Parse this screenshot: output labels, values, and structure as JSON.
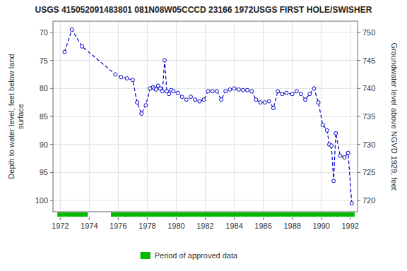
{
  "chart_data": {
    "type": "line",
    "title": "USGS 415052091483801 081N08W05CCCD 23166 1972USGS FIRST HOLE/SWISHER",
    "y_label": "Depth to water level, feet below land\nsurface",
    "y2_label": "Groundwater level above NGVD 1929, feet",
    "x": [
      1972.3,
      1972.8,
      1973.5,
      1975.8,
      1976.2,
      1976.6,
      1977.0,
      1977.3,
      1977.6,
      1977.9,
      1978.2,
      1978.4,
      1978.5,
      1978.6,
      1978.75,
      1978.9,
      1979.05,
      1979.2,
      1979.35,
      1979.5,
      1979.65,
      1979.8,
      1980.1,
      1980.4,
      1980.7,
      1981.0,
      1981.3,
      1981.6,
      1981.9,
      1982.2,
      1982.5,
      1982.8,
      1983.1,
      1983.4,
      1983.7,
      1984.0,
      1984.3,
      1984.6,
      1984.9,
      1985.2,
      1985.5,
      1985.8,
      1986.1,
      1986.4,
      1986.7,
      1987.0,
      1987.3,
      1987.6,
      1988.0,
      1988.3,
      1988.6,
      1988.9,
      1989.2,
      1989.5,
      1989.8,
      1990.1,
      1990.4,
      1990.55,
      1990.7,
      1990.85,
      1991.0,
      1991.3,
      1991.6,
      1991.85,
      1992.1
    ],
    "series": [
      {
        "color": "#0000cc",
        "marker": "circle",
        "line_style": "dashed",
        "values": [
          73.5,
          69.5,
          72.5,
          77.5,
          78.0,
          78.2,
          78.5,
          82.5,
          84.5,
          83.0,
          80.0,
          79.8,
          80.0,
          80.2,
          79.5,
          80.0,
          80.5,
          75.0,
          80.5,
          81.0,
          80.3,
          80.5,
          80.8,
          81.5,
          82.0,
          81.5,
          82.0,
          82.3,
          82.0,
          80.5,
          80.5,
          80.5,
          82.0,
          80.5,
          80.2,
          80.0,
          80.2,
          80.3,
          80.3,
          80.5,
          82.0,
          82.5,
          82.5,
          82.3,
          83.5,
          80.5,
          81.0,
          80.8,
          81.0,
          80.5,
          81.0,
          82.0,
          81.0,
          80.0,
          82.5,
          86.5,
          87.5,
          90.0,
          90.2,
          96.5,
          88.0,
          92.0,
          92.3,
          91.5,
          100.5
        ]
      },
      {
        "name": "Period of approved data",
        "type": "span",
        "color": "#00bb00",
        "values": [
          [
            1971.8,
            1973.9
          ],
          [
            1975.5,
            1992.3
          ]
        ]
      }
    ],
    "xlim": [
      1971.5,
      1992.5
    ],
    "xticks": [
      1972,
      1974,
      1976,
      1978,
      1980,
      1982,
      1984,
      1986,
      1988,
      1990,
      1992
    ],
    "ylim": [
      102,
      68
    ],
    "yticks": [
      70,
      75,
      80,
      85,
      90,
      95,
      100
    ],
    "y2lim": [
      718,
      752
    ],
    "y2ticks": [
      720,
      725,
      730,
      735,
      740,
      745,
      750
    ],
    "grid": true,
    "legend": "bottom"
  }
}
